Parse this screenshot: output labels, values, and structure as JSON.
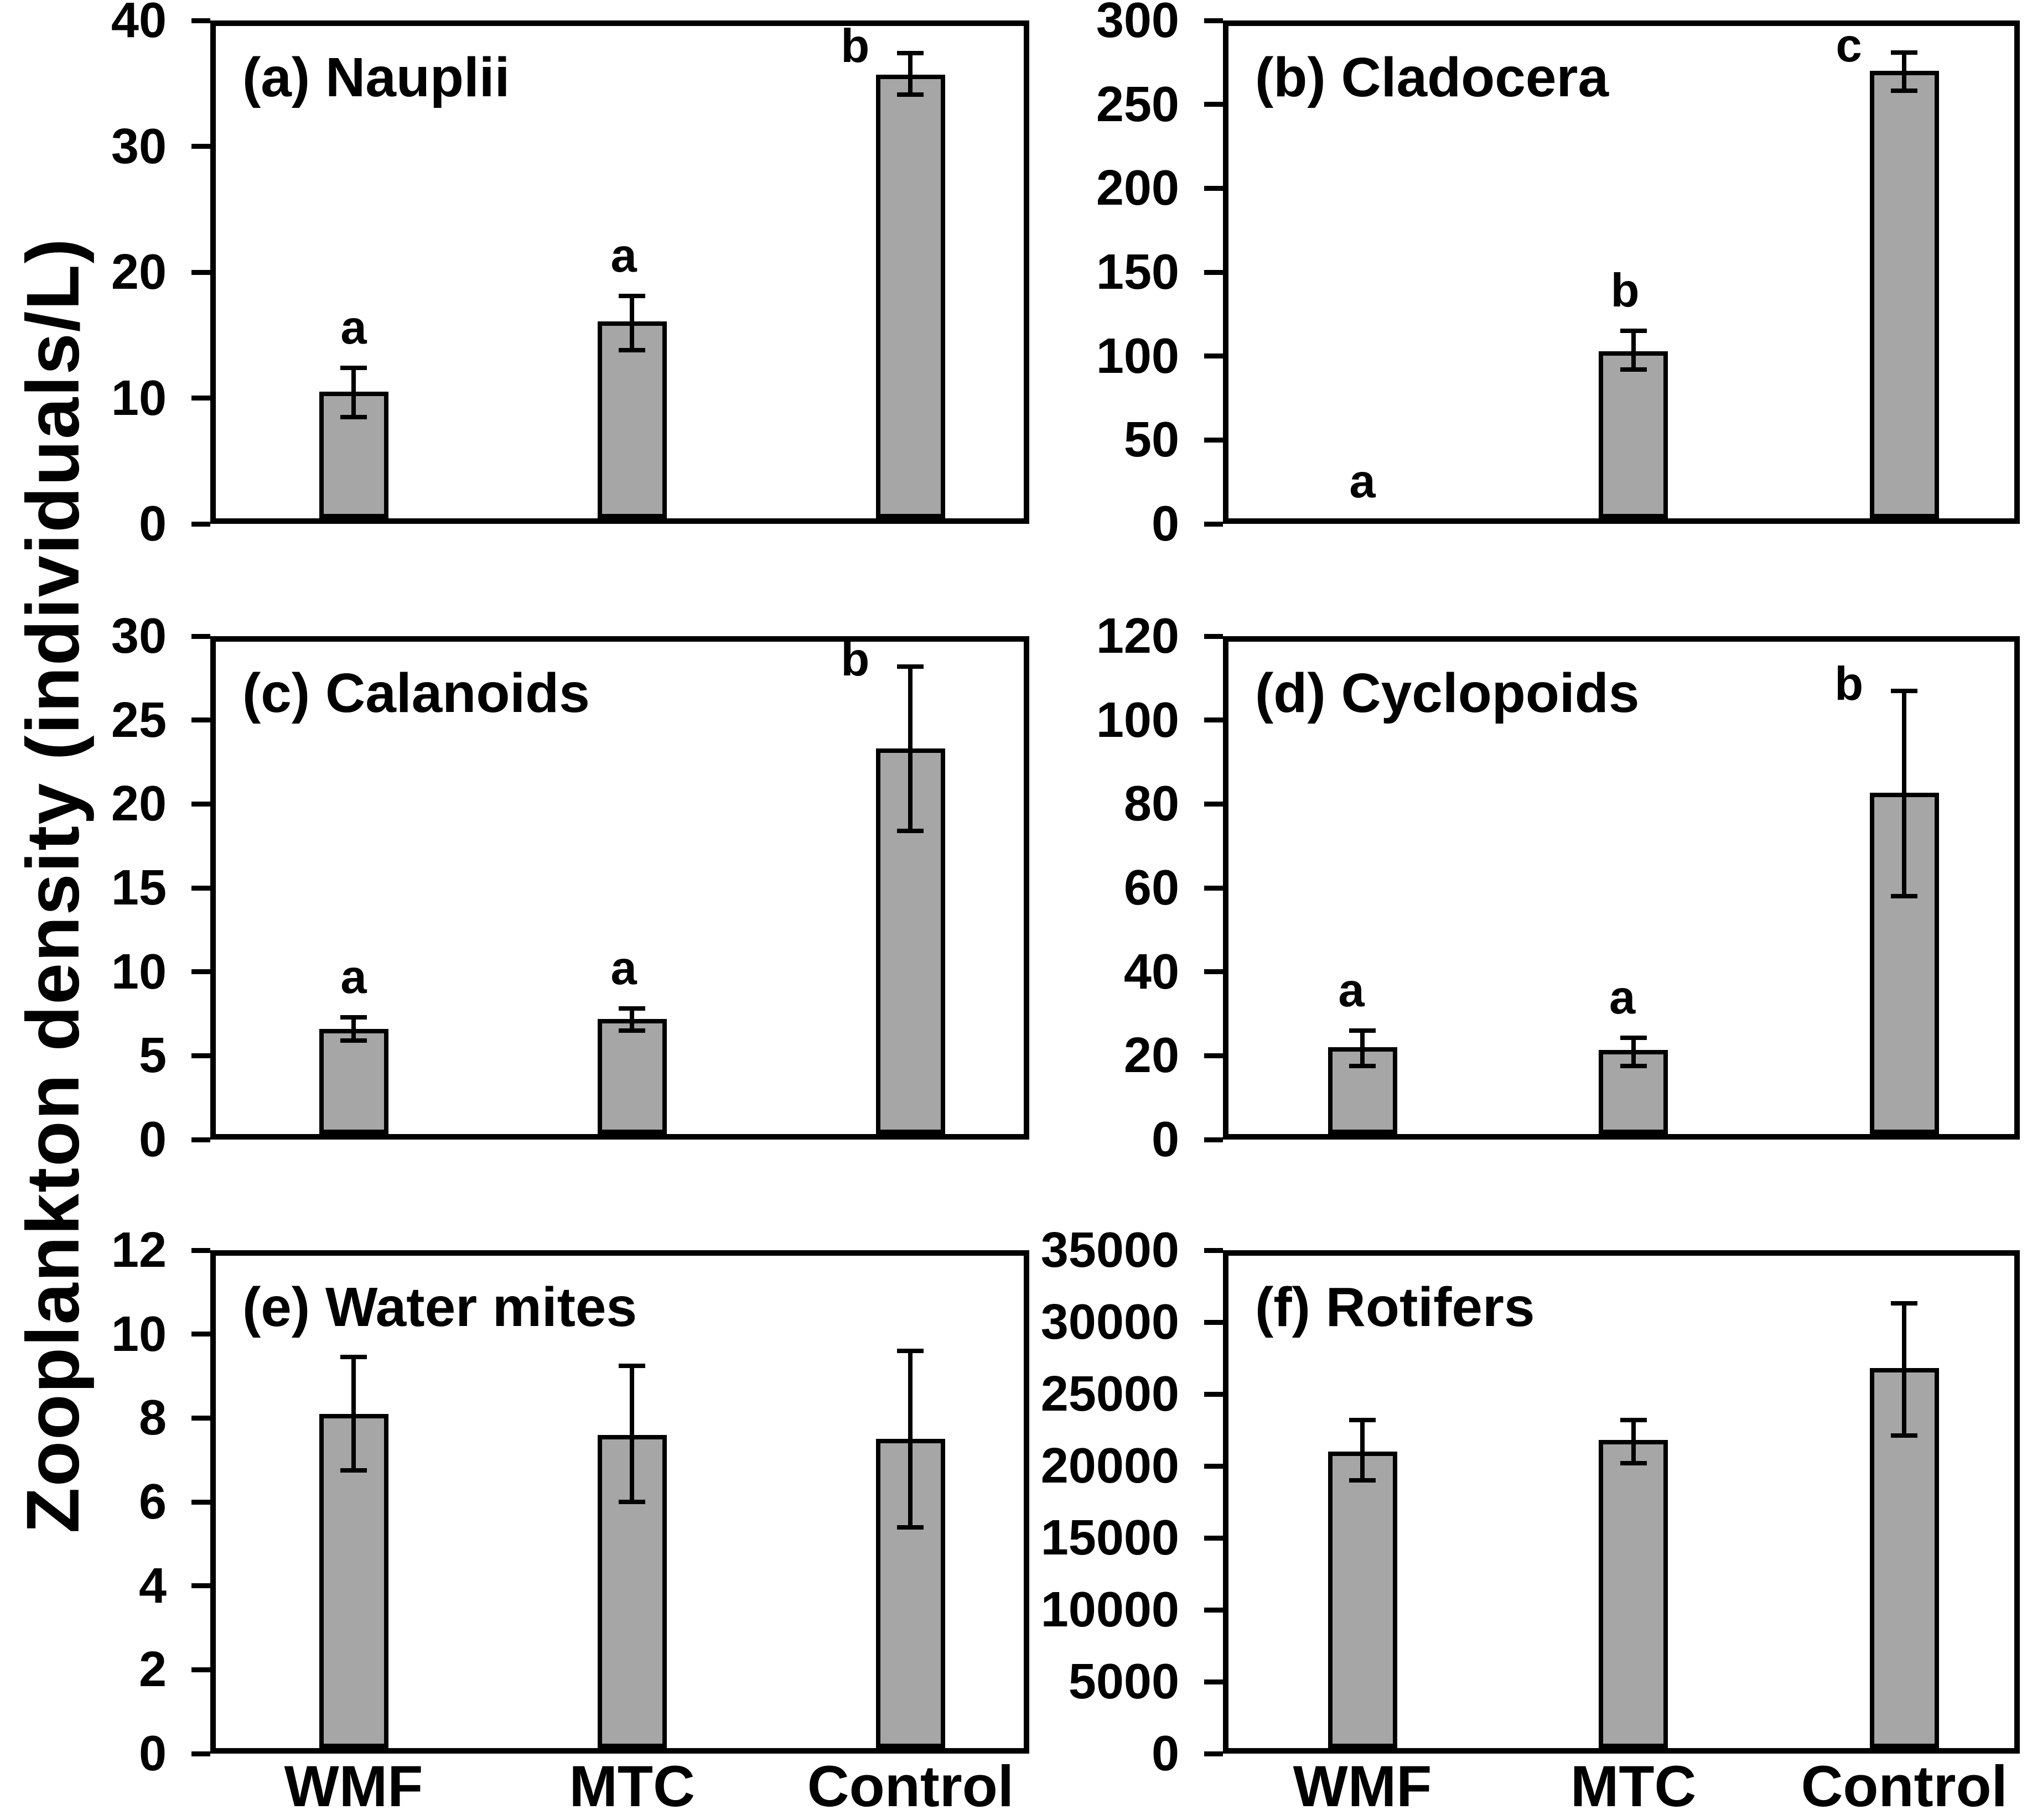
{
  "figure": {
    "y_axis_label": "Zooplankton density (individuals/L)",
    "background_color": "#ffffff",
    "bar_fill_color": "#a6a6a6",
    "bar_border_color": "#000000",
    "text_color": "#000000"
  },
  "categories": [
    "WMF",
    "MTC",
    "Control"
  ],
  "chart_data": [
    {
      "type": "bar",
      "panel": "a",
      "title": "(a) Nauplii",
      "ylim": [
        0,
        40
      ],
      "yticks": [
        0,
        10,
        20,
        30,
        40
      ],
      "categories": [
        "WMF",
        "MTC",
        "Control"
      ],
      "values": [
        10.5,
        16.1,
        35.7
      ],
      "error_low": [
        8.5,
        13.8,
        34.1
      ],
      "error_high": [
        12.4,
        18.1,
        37.4
      ],
      "sig_letters": [
        "a",
        "a",
        "b"
      ],
      "letter_dx": [
        0,
        -15,
        -100
      ],
      "show_x_labels": false
    },
    {
      "type": "bar",
      "panel": "b",
      "title": "(b) Cladocera",
      "ylim": [
        0,
        300
      ],
      "yticks": [
        0,
        50,
        100,
        150,
        200,
        250,
        300
      ],
      "categories": [
        "WMF",
        "MTC",
        "Control"
      ],
      "values": [
        0,
        103,
        270
      ],
      "error_low": [
        null,
        92,
        258
      ],
      "error_high": [
        null,
        115,
        281
      ],
      "sig_letters": [
        "a",
        "b",
        "c"
      ],
      "letter_dx": [
        0,
        -15,
        -100
      ],
      "sig_letter_y": [
        25,
        null,
        null
      ],
      "show_x_labels": false
    },
    {
      "type": "bar",
      "panel": "c",
      "title": "(c) Calanoids",
      "ylim": [
        0,
        30
      ],
      "yticks": [
        0,
        5,
        10,
        15,
        20,
        25,
        30
      ],
      "categories": [
        "WMF",
        "MTC",
        "Control"
      ],
      "values": [
        6.6,
        7.2,
        23.3
      ],
      "error_low": [
        5.9,
        6.5,
        18.4
      ],
      "error_high": [
        7.3,
        7.8,
        28.2
      ],
      "sig_letters": [
        "a",
        "a",
        "b"
      ],
      "letter_dx": [
        0,
        -15,
        -100
      ],
      "show_x_labels": false
    },
    {
      "type": "bar",
      "panel": "d",
      "title": "(d) Cyclopoids",
      "ylim": [
        0,
        120
      ],
      "yticks": [
        0,
        20,
        40,
        60,
        80,
        100,
        120
      ],
      "categories": [
        "WMF",
        "MTC",
        "Control"
      ],
      "values": [
        22,
        21.3,
        82.7
      ],
      "error_low": [
        17.5,
        17.5,
        58
      ],
      "error_high": [
        26,
        24.3,
        107
      ],
      "sig_letters": [
        "a",
        "a",
        "b"
      ],
      "letter_dx": [
        -20,
        -20,
        -100
      ],
      "show_x_labels": false
    },
    {
      "type": "bar",
      "panel": "e",
      "title": "(e) Water mites",
      "ylim": [
        0,
        12
      ],
      "yticks": [
        0,
        2,
        4,
        6,
        8,
        10,
        12
      ],
      "categories": [
        "WMF",
        "MTC",
        "Control"
      ],
      "values": [
        8.1,
        7.6,
        7.5
      ],
      "error_low": [
        6.75,
        6.0,
        5.4
      ],
      "error_high": [
        9.45,
        9.25,
        9.6
      ],
      "sig_letters": null,
      "show_x_labels": true
    },
    {
      "type": "bar",
      "panel": "f",
      "title": "(f) Rotifers",
      "ylim": [
        0,
        35000
      ],
      "yticks": [
        0,
        5000,
        10000,
        15000,
        20000,
        25000,
        30000,
        35000
      ],
      "categories": [
        "WMF",
        "MTC",
        "Control"
      ],
      "values": [
        21000,
        21800,
        26800
      ],
      "error_low": [
        19000,
        20200,
        22100
      ],
      "error_high": [
        23200,
        23200,
        31300
      ],
      "sig_letters": null,
      "show_x_labels": true
    }
  ]
}
